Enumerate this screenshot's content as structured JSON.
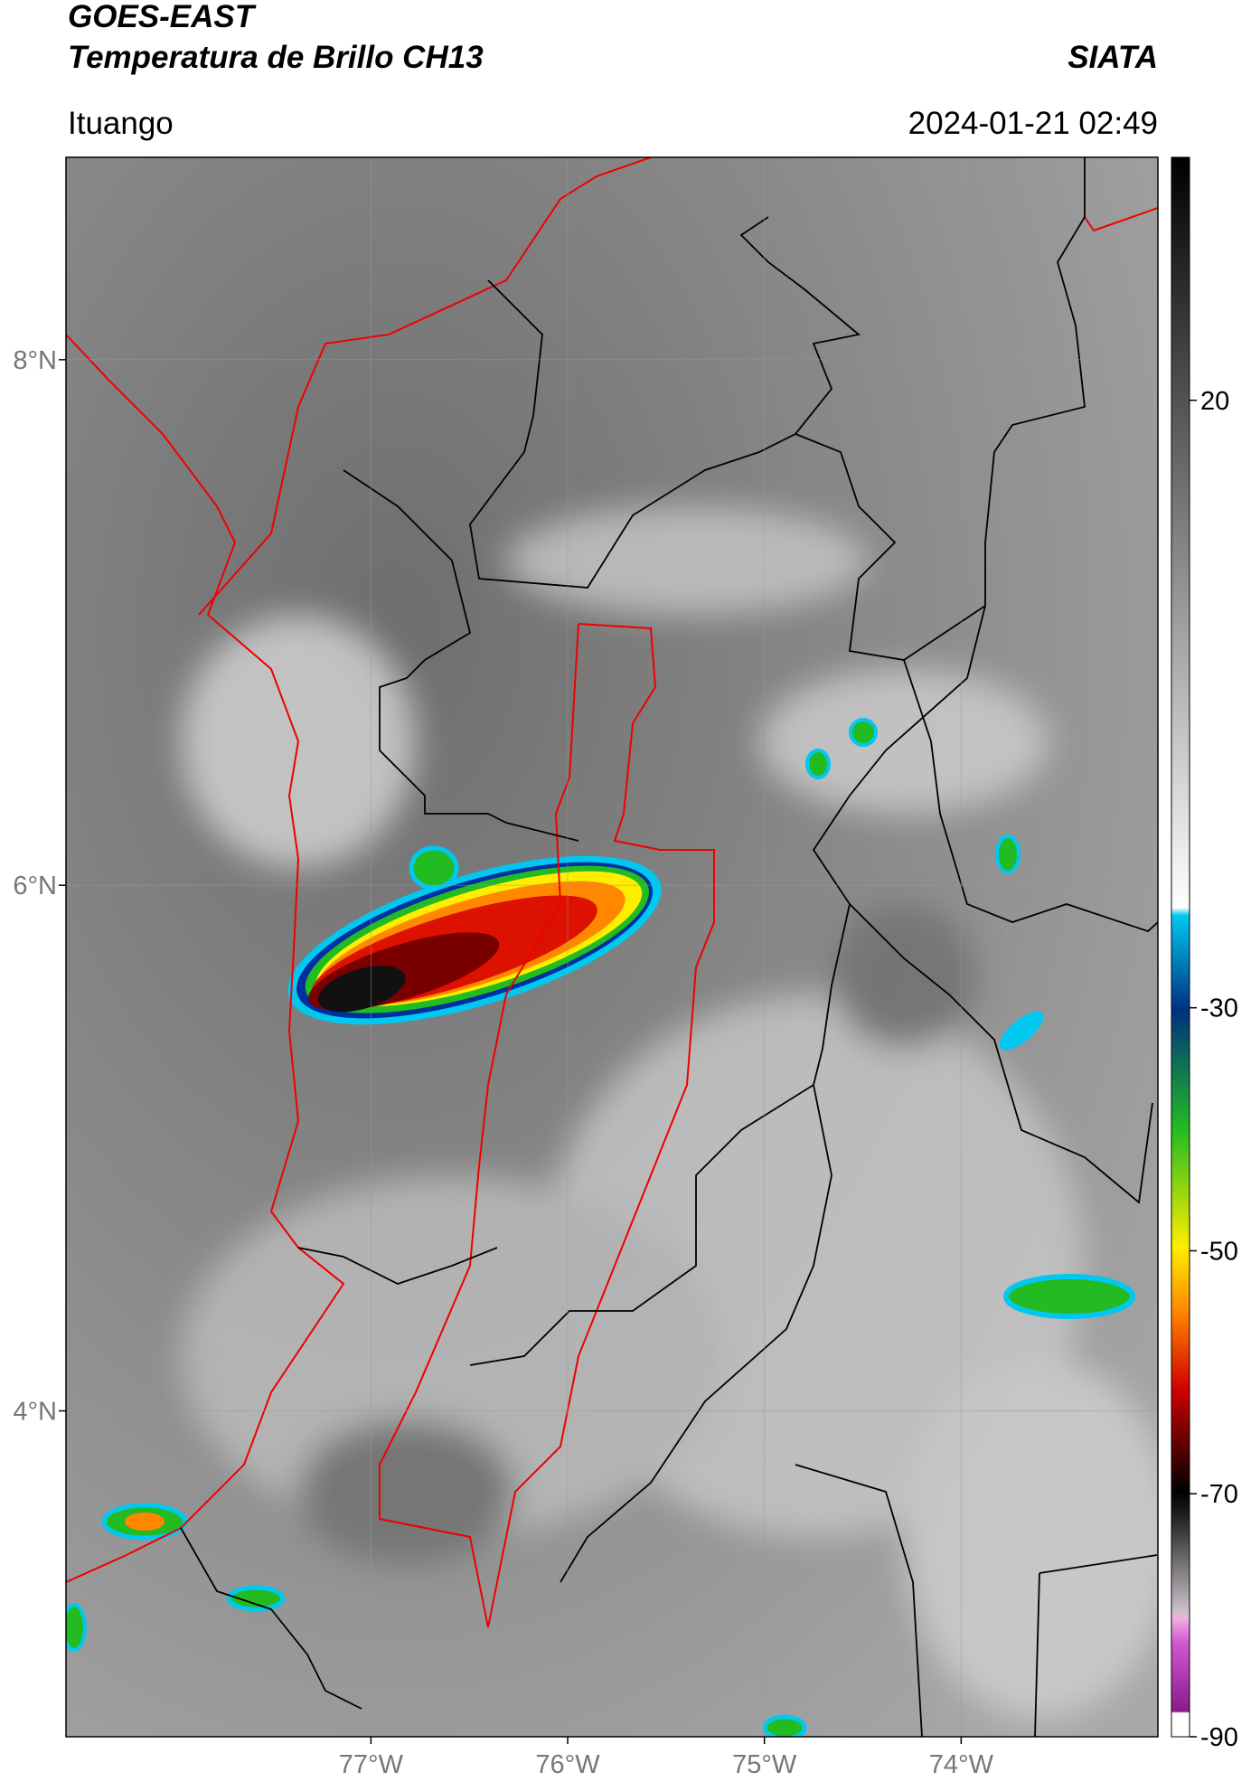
{
  "header": {
    "title_lines": [
      "GOES-EAST",
      "Temperatura de Brillo CH13"
    ],
    "source": "SIATA",
    "location": "Ituango",
    "timestamp": "2024-01-21 02:49"
  },
  "map": {
    "latlim": [
      2.76,
      8.77
    ],
    "lonlim": [
      -78.55,
      -73.0
    ],
    "lat_ticks": [
      {
        "value": 8,
        "label": "8°N"
      },
      {
        "value": 6,
        "label": "6°N"
      },
      {
        "value": 4,
        "label": "4°N"
      }
    ],
    "lon_ticks": [
      {
        "value": -77,
        "label": "77°W"
      },
      {
        "value": -76,
        "label": "76°W"
      },
      {
        "value": -75,
        "label": "75°W"
      },
      {
        "value": -74,
        "label": "74°W"
      }
    ]
  },
  "colorbar": {
    "lim": [
      -90,
      40
    ],
    "ticks": [
      20,
      -30,
      -50,
      -70,
      -90
    ]
  }
}
